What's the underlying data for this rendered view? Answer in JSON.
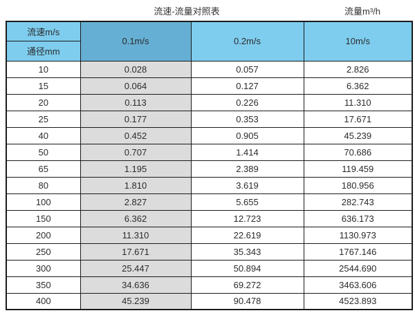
{
  "page": {
    "title_left": "流速-流量对照表",
    "title_right": "流量m³/h"
  },
  "table": {
    "corner_top": "流速m/s",
    "corner_bottom": "通径mm",
    "velocity_headers": [
      "0.1m/s",
      "0.2m/s",
      "10m/s"
    ],
    "rows": [
      {
        "diameter": "10",
        "values": [
          "0.028",
          "0.057",
          "2.826"
        ]
      },
      {
        "diameter": "15",
        "values": [
          "0.064",
          "0.127",
          "6.362"
        ]
      },
      {
        "diameter": "20",
        "values": [
          "0.113",
          "0.226",
          "11.310"
        ]
      },
      {
        "diameter": "25",
        "values": [
          "0.177",
          "0.353",
          "17.671"
        ]
      },
      {
        "diameter": "40",
        "values": [
          "0.452",
          "0.905",
          "45.239"
        ]
      },
      {
        "diameter": "50",
        "values": [
          "0.707",
          "1.414",
          "70.686"
        ]
      },
      {
        "diameter": "65",
        "values": [
          "1.195",
          "2.389",
          "119.459"
        ]
      },
      {
        "diameter": "80",
        "values": [
          "1.810",
          "3.619",
          "180.956"
        ]
      },
      {
        "diameter": "100",
        "values": [
          "2.827",
          "5.655",
          "282.743"
        ]
      },
      {
        "diameter": "150",
        "values": [
          "6.362",
          "12.723",
          "636.173"
        ]
      },
      {
        "diameter": "200",
        "values": [
          "11.310",
          "22.619",
          "1130.973"
        ]
      },
      {
        "diameter": "250",
        "values": [
          "17.671",
          "35.343",
          "1767.146"
        ]
      },
      {
        "diameter": "300",
        "values": [
          "25.447",
          "50.894",
          "2544.690"
        ]
      },
      {
        "diameter": "350",
        "values": [
          "34.636",
          "69.272",
          "3463.606"
        ]
      },
      {
        "diameter": "400",
        "values": [
          "45.239",
          "90.478",
          "4523.893"
        ]
      }
    ]
  },
  "colors": {
    "header_blue_light": "#7ECDEF",
    "header_blue_dark": "#66AFD4",
    "column_gray": "#DCDCDC",
    "border": "#1A1A1A",
    "text": "#2B2B2B"
  },
  "chart_data": {
    "type": "table",
    "title": "流速-流量对照表",
    "right_header": "流量m³/h",
    "columns": [
      "通径mm",
      "0.1m/s",
      "0.2m/s",
      "10m/s"
    ],
    "rows": [
      [
        10,
        0.028,
        0.057,
        2.826
      ],
      [
        15,
        0.064,
        0.127,
        6.362
      ],
      [
        20,
        0.113,
        0.226,
        11.31
      ],
      [
        25,
        0.177,
        0.353,
        17.671
      ],
      [
        40,
        0.452,
        0.905,
        45.239
      ],
      [
        50,
        0.707,
        1.414,
        70.686
      ],
      [
        65,
        1.195,
        2.389,
        119.459
      ],
      [
        80,
        1.81,
        3.619,
        180.956
      ],
      [
        100,
        2.827,
        5.655,
        282.743
      ],
      [
        150,
        6.362,
        12.723,
        636.173
      ],
      [
        200,
        11.31,
        22.619,
        1130.973
      ],
      [
        250,
        17.671,
        35.343,
        1767.146
      ],
      [
        300,
        25.447,
        50.894,
        2544.69
      ],
      [
        350,
        34.636,
        69.272,
        3463.606
      ],
      [
        400,
        45.239,
        90.478,
        4523.893
      ]
    ]
  }
}
